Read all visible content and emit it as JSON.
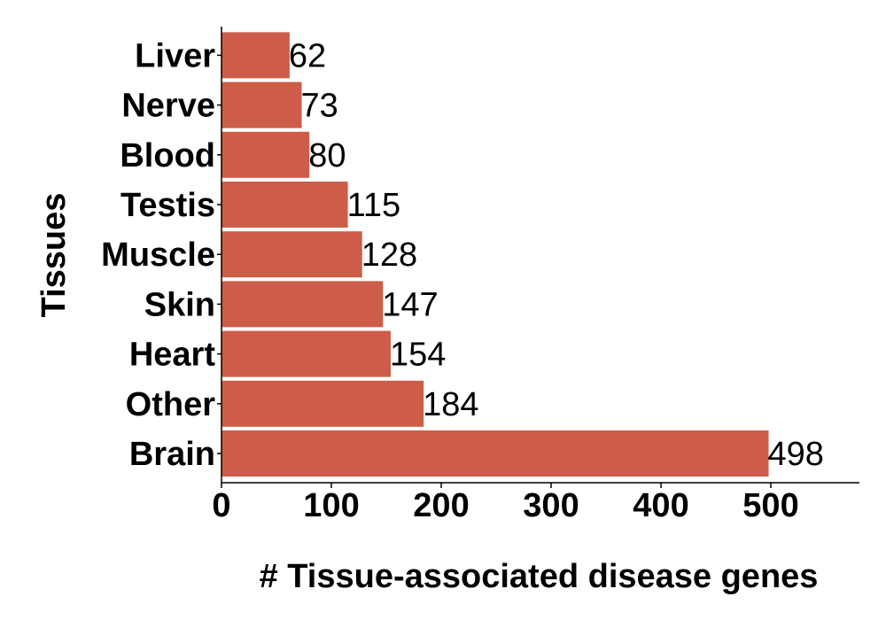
{
  "chart_data": {
    "type": "bar",
    "orientation": "horizontal",
    "categories": [
      "Brain",
      "Other",
      "Heart",
      "Skin",
      "Muscle",
      "Testis",
      "Blood",
      "Nerve",
      "Liver"
    ],
    "values": [
      498,
      184,
      154,
      147,
      128,
      115,
      80,
      73,
      62
    ],
    "data_labels": [
      "498",
      "184",
      "154",
      "147",
      "128",
      "115",
      "80",
      "73",
      "62"
    ],
    "xlabel": "# Tissue-associated disease genes",
    "ylabel": "Tissues",
    "xlim": [
      0,
      580
    ],
    "xticks": [
      0,
      100,
      200,
      300,
      400,
      500
    ],
    "xtick_labels": [
      "0",
      "100",
      "200",
      "300",
      "400",
      "500"
    ],
    "grid": false,
    "legend": "none",
    "bar_color": "#CD5C48"
  }
}
